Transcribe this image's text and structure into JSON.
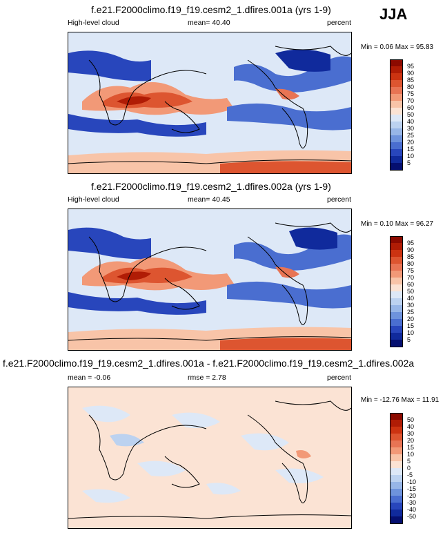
{
  "season": "JJA",
  "panels": [
    {
      "id": "p1",
      "title": "f.e21.F2000climo.f19_f19.cesm2_1.dfires.001a (yrs 1-9)",
      "left_label": "High-level cloud",
      "mid_label": "mean=  40.40",
      "right_label": "percent",
      "minmax": "Min =   0.06 Max =  95.83",
      "levels": [
        "95",
        "90",
        "85",
        "80",
        "75",
        "70",
        "60",
        "50",
        "40",
        "30",
        "25",
        "20",
        "15",
        "10",
        "5"
      ],
      "kind": "abs"
    },
    {
      "id": "p2",
      "title": "f.e21.F2000climo.f19_f19.cesm2_1.dfires.002a (yrs 1-9)",
      "left_label": "High-level cloud",
      "mid_label": "mean=  40.45",
      "right_label": "percent",
      "minmax": "Min =   0.10 Max =  96.27",
      "levels": [
        "95",
        "90",
        "85",
        "80",
        "75",
        "70",
        "60",
        "50",
        "40",
        "30",
        "25",
        "20",
        "15",
        "10",
        "5"
      ],
      "kind": "abs"
    },
    {
      "id": "p3",
      "title": "f.e21.F2000climo.f19_f19.cesm2_1.dfires.001a - f.e21.F2000climo.f19_f19.cesm2_1.dfires.002a",
      "left_label": "mean =  -0.06",
      "mid_label": "rmse =   2.78",
      "right_label": "percent",
      "minmax": "Min = -12.76 Max =  11.91",
      "levels": [
        "50",
        "40",
        "30",
        "20",
        "15",
        "10",
        "5",
        "0",
        "-5",
        "-10",
        "-15",
        "-20",
        "-30",
        "-40",
        "-50"
      ],
      "kind": "diff"
    }
  ],
  "colors": {
    "scale": [
      "#8c0a00",
      "#b01c05",
      "#cc3311",
      "#dd5530",
      "#e87454",
      "#f29977",
      "#f8c4a8",
      "#fbe3d4",
      "#dde8f7",
      "#bcd2f0",
      "#97b6e7",
      "#6e93dc",
      "#4a6ed0",
      "#2846bc",
      "#102a9c",
      "#050f70"
    ],
    "coast": "#000000"
  }
}
